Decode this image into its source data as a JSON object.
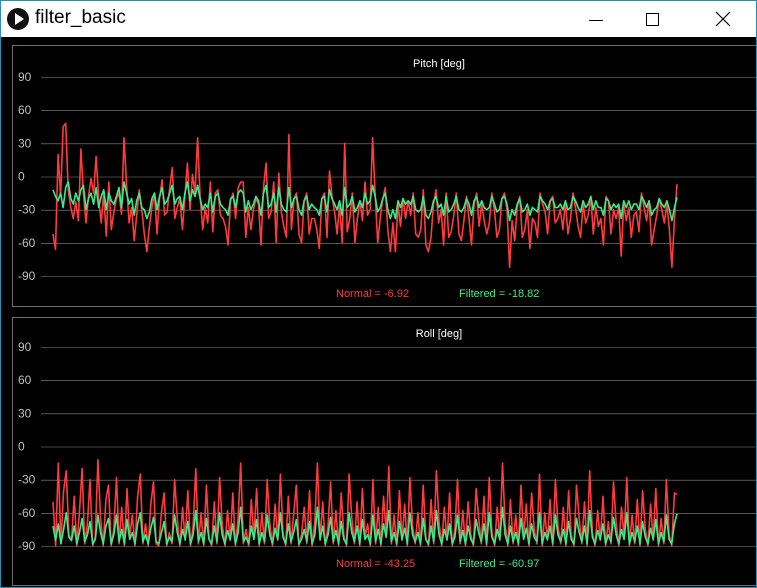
{
  "window": {
    "title": "filter_basic"
  },
  "colors": {
    "normal": "#ff3b3b",
    "filtered": "#3dea8a",
    "axis_text": "#bfbfbf",
    "grid": "#8a8a8a",
    "frame": "#6e6e6e"
  },
  "chart_data": [
    {
      "type": "line",
      "title": "Pitch [deg]",
      "ylim": [
        -90,
        90
      ],
      "yticks": [
        90,
        60,
        30,
        0,
        -30,
        -60,
        -90
      ],
      "grid": true,
      "series": [
        {
          "name": "Normal",
          "values": [
            -52,
            -66,
            20,
            -18,
            45,
            48,
            -12,
            -28,
            -38,
            -23,
            -40,
            25,
            -15,
            -42,
            -18,
            -2,
            -15,
            18,
            -20,
            -42,
            -15,
            -54,
            -5,
            -48,
            -32,
            -20,
            -15,
            -34,
            35,
            -8,
            -42,
            -28,
            -58,
            -35,
            -12,
            -30,
            -52,
            -68,
            -45,
            -28,
            -15,
            -52,
            -20,
            -3,
            -35,
            -32,
            -10,
            8,
            -38,
            -28,
            -20,
            -48,
            -18,
            12,
            -30,
            2,
            -15,
            35,
            -18,
            -48,
            -28,
            -42,
            -5,
            -50,
            -15,
            -12,
            -35,
            -38,
            -45,
            -62,
            -22,
            -15,
            -38,
            -10,
            -5,
            -5,
            -55,
            -28,
            -48,
            -30,
            -20,
            -25,
            -62,
            -10,
            12,
            -38,
            -32,
            -5,
            -60,
            3,
            -32,
            -45,
            -55,
            38,
            -48,
            -20,
            -15,
            -52,
            -60,
            -22,
            -15,
            -52,
            -38,
            -38,
            -48,
            -65,
            -20,
            -15,
            -55,
            5,
            -18,
            -32,
            -52,
            -25,
            -60,
            30,
            -50,
            -38,
            -15,
            -60,
            -38,
            -22,
            -40,
            -5,
            -35,
            -30,
            35,
            -15,
            -60,
            -38,
            -20,
            -10,
            -48,
            -68,
            -42,
            -68,
            -25,
            -45,
            -20,
            -38,
            -22,
            -35,
            -15,
            -52,
            -55,
            -48,
            -12,
            -62,
            -68,
            -55,
            -25,
            -12,
            -42,
            -30,
            -62,
            -15,
            -55,
            -50,
            -35,
            -15,
            -52,
            -58,
            -40,
            -18,
            -38,
            -62,
            -25,
            -15,
            -45,
            -25,
            -40,
            -52,
            -42,
            -15,
            -30,
            -55,
            -48,
            -20,
            -15,
            -30,
            -82,
            -40,
            -58,
            -28,
            -18,
            -55,
            -48,
            -30,
            -65,
            -38,
            -42,
            -55,
            -15,
            -25,
            -32,
            -52,
            -22,
            -18,
            -42,
            -38,
            -30,
            -48,
            -22,
            -52,
            -38,
            -15,
            -28,
            -45,
            -55,
            -25,
            -42,
            -35,
            -18,
            -52,
            -28,
            -45,
            -38,
            -62,
            -18,
            -22,
            -52,
            -30,
            -38,
            -28,
            -72,
            -25,
            -40,
            -28,
            -55,
            -35,
            -32,
            -50,
            -15,
            -28,
            -40,
            -22,
            -62,
            -48,
            -35,
            -20,
            -30,
            -42,
            -25,
            -48,
            -82,
            -38,
            -6.92
          ]
        },
        {
          "name": "Filtered",
          "values": [
            -12,
            -18,
            -22,
            -15,
            -28,
            -10,
            -5,
            -20,
            -25,
            -15,
            -22,
            -12,
            -8,
            -30,
            -20,
            -15,
            -25,
            -10,
            -28,
            -18,
            -12,
            -30,
            -15,
            -22,
            -25,
            -18,
            -10,
            -28,
            -5,
            -15,
            -25,
            -20,
            -35,
            -22,
            -15,
            -28,
            -30,
            -38,
            -32,
            -20,
            -15,
            -30,
            -18,
            -10,
            -25,
            -22,
            -15,
            -8,
            -25,
            -20,
            -18,
            -30,
            -15,
            -5,
            -22,
            -12,
            -18,
            -8,
            -20,
            -30,
            -25,
            -28,
            -15,
            -32,
            -18,
            -15,
            -25,
            -28,
            -30,
            -35,
            -20,
            -18,
            -28,
            -15,
            -12,
            -15,
            -32,
            -22,
            -30,
            -25,
            -18,
            -22,
            -35,
            -15,
            -8,
            -28,
            -25,
            -15,
            -32,
            -10,
            -25,
            -30,
            -32,
            -10,
            -28,
            -20,
            -18,
            -30,
            -35,
            -22,
            -18,
            -30,
            -25,
            -28,
            -30,
            -35,
            -20,
            -18,
            -32,
            -12,
            -20,
            -25,
            -30,
            -22,
            -35,
            -10,
            -28,
            -25,
            -18,
            -32,
            -28,
            -22,
            -28,
            -15,
            -25,
            -22,
            -8,
            -18,
            -32,
            -28,
            -20,
            -15,
            -30,
            -38,
            -30,
            -38,
            -22,
            -28,
            -20,
            -25,
            -22,
            -25,
            -18,
            -30,
            -32,
            -30,
            -18,
            -35,
            -38,
            -32,
            -22,
            -18,
            -28,
            -25,
            -35,
            -18,
            -32,
            -30,
            -25,
            -18,
            -30,
            -32,
            -28,
            -20,
            -25,
            -35,
            -22,
            -18,
            -28,
            -22,
            -28,
            -30,
            -28,
            -18,
            -25,
            -32,
            -30,
            -20,
            -18,
            -25,
            -40,
            -30,
            -35,
            -25,
            -20,
            -32,
            -30,
            -25,
            -35,
            -28,
            -30,
            -32,
            -18,
            -22,
            -25,
            -30,
            -22,
            -20,
            -28,
            -28,
            -25,
            -30,
            -22,
            -30,
            -28,
            -18,
            -22,
            -28,
            -32,
            -22,
            -28,
            -25,
            -18,
            -30,
            -22,
            -28,
            -28,
            -35,
            -20,
            -22,
            -30,
            -25,
            -28,
            -25,
            -38,
            -22,
            -28,
            -22,
            -30,
            -25,
            -25,
            -30,
            -18,
            -22,
            -28,
            -22,
            -35,
            -30,
            -28,
            -20,
            -25,
            -28,
            -22,
            -30,
            -40,
            -28,
            -18.82
          ]
        }
      ],
      "readouts": {
        "normal": "Normal = -6.92",
        "filtered": "Filtered = -18.82"
      }
    },
    {
      "type": "line",
      "title": "Roll [deg]",
      "ylim": [
        -90,
        90
      ],
      "yticks": [
        90,
        60,
        30,
        0,
        -30,
        -60,
        -90
      ],
      "grid": true,
      "series": [
        {
          "name": "Normal",
          "values": [
            -50,
            -90,
            -15,
            -88,
            -40,
            -22,
            -80,
            -85,
            -45,
            -90,
            -60,
            -20,
            -88,
            -70,
            -30,
            -90,
            -82,
            -12,
            -65,
            -90,
            -48,
            -35,
            -90,
            -75,
            -28,
            -88,
            -55,
            -90,
            -38,
            -82,
            -62,
            -90,
            -45,
            -25,
            -88,
            -70,
            -90,
            -52,
            -32,
            -88,
            -90,
            -60,
            -42,
            -90,
            -78,
            -88,
            -30,
            -65,
            -90,
            -55,
            -85,
            -40,
            -90,
            -72,
            -20,
            -88,
            -60,
            -90,
            -35,
            -82,
            -90,
            -50,
            -88,
            -28,
            -70,
            -90,
            -58,
            -85,
            -42,
            -90,
            -65,
            -15,
            -88,
            -75,
            -90,
            -48,
            -82,
            -38,
            -90,
            -60,
            -88,
            -30,
            -70,
            -90,
            -52,
            -85,
            -25,
            -78,
            -90,
            -45,
            -88,
            -62,
            -35,
            -90,
            -80,
            -55,
            -88,
            -40,
            -90,
            -68,
            -15,
            -85,
            -50,
            -90,
            -72,
            -32,
            -88,
            -58,
            -90,
            -42,
            -80,
            -90,
            -25,
            -65,
            -88,
            -50,
            -90,
            -38,
            -82,
            -70,
            -90,
            -30,
            -88,
            -55,
            -90,
            -45,
            -78,
            -18,
            -88,
            -62,
            -90,
            -40,
            -85,
            -52,
            -90,
            -28,
            -72,
            -88,
            -60,
            -90,
            -35,
            -82,
            -90,
            -48,
            -88,
            -22,
            -68,
            -90,
            -55,
            -85,
            -42,
            -90,
            -75,
            -30,
            -88,
            -58,
            -90,
            -50,
            -80,
            -90,
            -38,
            -65,
            -88,
            -45,
            -90,
            -28,
            -78,
            -90,
            -55,
            -85,
            -15,
            -70,
            -90,
            -48,
            -88,
            -62,
            -90,
            -35,
            -82,
            -52,
            -90,
            -42,
            -75,
            -88,
            -25,
            -90,
            -60,
            -85,
            -48,
            -90,
            -30,
            -72,
            -88,
            -55,
            -90,
            -40,
            -80,
            -90,
            -35,
            -65,
            -88,
            -50,
            -90,
            -22,
            -78,
            -90,
            -58,
            -85,
            -45,
            -90,
            -68,
            -88,
            -32,
            -70,
            -90,
            -55,
            -82,
            -28,
            -90,
            -62,
            -88,
            -48,
            -90,
            -40,
            -75,
            -90,
            -52,
            -85,
            -38,
            -90,
            -65,
            -88,
            -30,
            -80,
            -90,
            -42,
            -43.25
          ]
        },
        {
          "name": "Filtered",
          "values": [
            -72,
            -85,
            -70,
            -88,
            -75,
            -60,
            -82,
            -85,
            -72,
            -88,
            -78,
            -65,
            -86,
            -80,
            -68,
            -88,
            -84,
            -62,
            -78,
            -88,
            -72,
            -65,
            -88,
            -80,
            -62,
            -86,
            -75,
            -88,
            -66,
            -84,
            -78,
            -88,
            -70,
            -60,
            -86,
            -80,
            -88,
            -74,
            -64,
            -86,
            -88,
            -78,
            -68,
            -88,
            -82,
            -86,
            -62,
            -78,
            -88,
            -75,
            -84,
            -68,
            -88,
            -80,
            -58,
            -86,
            -78,
            -88,
            -65,
            -84,
            -88,
            -72,
            -86,
            -60,
            -80,
            -88,
            -76,
            -84,
            -70,
            -88,
            -78,
            -55,
            -86,
            -82,
            -88,
            -72,
            -84,
            -66,
            -88,
            -78,
            -86,
            -62,
            -80,
            -88,
            -74,
            -84,
            -60,
            -82,
            -88,
            -70,
            -86,
            -78,
            -66,
            -88,
            -84,
            -75,
            -86,
            -68,
            -88,
            -80,
            -55,
            -84,
            -72,
            -88,
            -80,
            -64,
            -86,
            -76,
            -88,
            -68,
            -84,
            -88,
            -60,
            -78,
            -86,
            -72,
            -88,
            -66,
            -84,
            -80,
            -88,
            -62,
            -86,
            -75,
            -88,
            -70,
            -82,
            -58,
            -86,
            -78,
            -88,
            -68,
            -84,
            -74,
            -88,
            -60,
            -80,
            -86,
            -78,
            -88,
            -65,
            -84,
            -88,
            -72,
            -86,
            -58,
            -80,
            -88,
            -75,
            -84,
            -70,
            -88,
            -82,
            -62,
            -86,
            -76,
            -88,
            -72,
            -84,
            -88,
            -66,
            -78,
            -86,
            -70,
            -88,
            -60,
            -82,
            -88,
            -75,
            -84,
            -55,
            -80,
            -88,
            -72,
            -86,
            -78,
            -88,
            -65,
            -84,
            -74,
            -88,
            -70,
            -82,
            -86,
            -60,
            -88,
            -78,
            -84,
            -72,
            -88,
            -62,
            -80,
            -86,
            -75,
            -88,
            -68,
            -84,
            -88,
            -65,
            -78,
            -86,
            -72,
            -88,
            -58,
            -82,
            -88,
            -76,
            -84,
            -70,
            -88,
            -80,
            -86,
            -64,
            -80,
            -88,
            -75,
            -84,
            -60,
            -88,
            -78,
            -86,
            -72,
            -88,
            -68,
            -82,
            -88,
            -74,
            -84,
            -66,
            -88,
            -78,
            -86,
            -62,
            -84,
            -88,
            -70,
            -60.97
          ]
        }
      ],
      "readouts": {
        "normal": "Normal = -43.25",
        "filtered": "Filtered = -60.97"
      }
    }
  ]
}
